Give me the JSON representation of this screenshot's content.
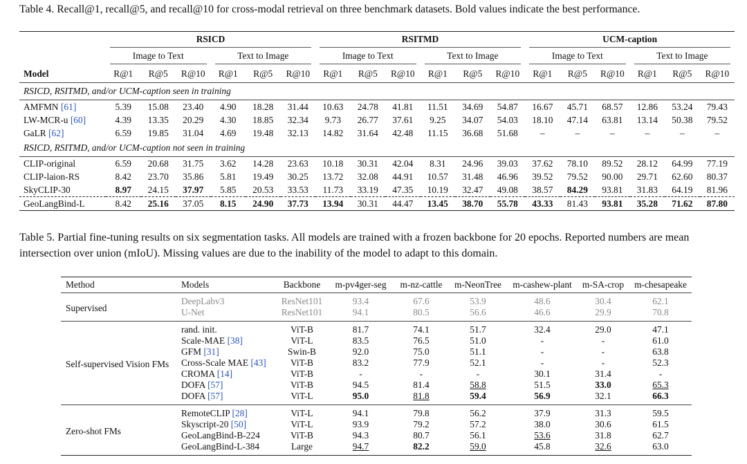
{
  "table4": {
    "caption": "Table 4. Recall@1, recall@5, and recall@10 for cross-modal retrieval on three benchmark datasets. Bold values indicate the best performance.",
    "model_header": "Model",
    "datasets": [
      "RSICD",
      "RSITMD",
      "UCM-caption"
    ],
    "directions": [
      "Image to Text",
      "Text to Image"
    ],
    "metrics": [
      "R@1",
      "R@5",
      "R@10"
    ],
    "sections": [
      {
        "label": "RSICD, RSITMD, and/or UCM-caption seen in training",
        "rows": [
          {
            "model": "AMFMN",
            "ref": "[61]",
            "values": [
              "5.39",
              "15.08",
              "23.40",
              "4.90",
              "18.28",
              "31.44",
              "10.63",
              "24.78",
              "41.81",
              "11.51",
              "34.69",
              "54.87",
              "16.67",
              "45.71",
              "68.57",
              "12.86",
              "53.24",
              "79.43"
            ]
          },
          {
            "model": "LW-MCR-u",
            "ref": "[60]",
            "values": [
              "4.39",
              "13.35",
              "20.29",
              "4.30",
              "18.85",
              "32.34",
              "9.73",
              "26.77",
              "37.61",
              "9.25",
              "34.07",
              "54.03",
              "18.10",
              "47.14",
              "63.81",
              "13.14",
              "50.38",
              "79.52"
            ]
          },
          {
            "model": "GaLR",
            "ref": "[62]",
            "values": [
              "6.59",
              "19.85",
              "31.04",
              "4.69",
              "19.48",
              "32.13",
              "14.82",
              "31.64",
              "42.48",
              "11.15",
              "36.68",
              "51.68",
              "–",
              "–",
              "–",
              "–",
              "–",
              "–"
            ]
          }
        ]
      },
      {
        "label": "RSICD, RSITMD, and/or UCM-caption not seen in training",
        "rows": [
          {
            "model": "CLIP-original",
            "values": [
              "6.59",
              "20.68",
              "31.75",
              "3.62",
              "14.28",
              "23.63",
              "10.18",
              "30.31",
              "42.04",
              "8.31",
              "24.96",
              "39.03",
              "37.62",
              "78.10",
              "89.52",
              "28.12",
              "64.99",
              "77.19"
            ]
          },
          {
            "model": "CLIP-laion-RS",
            "values": [
              "8.42",
              "23.70",
              "35.86",
              "5.81",
              "19.49",
              "30.25",
              "13.72",
              "32.08",
              "44.91",
              "10.57",
              "31.48",
              "46.96",
              "39.52",
              "79.52",
              "90.00",
              "29.71",
              "62.60",
              "80.37"
            ]
          },
          {
            "model": "SkyCLIP-30",
            "values": [
              "8.97",
              "24.15",
              "37.97",
              "5.85",
              "20.53",
              "33.53",
              "11.73",
              "33.19",
              "47.35",
              "10.19",
              "32.47",
              "49.08",
              "38.57",
              "84.29",
              "93.81",
              "31.83",
              "64.19",
              "81.96"
            ],
            "bold": [
              0,
              2,
              13
            ]
          },
          {
            "model": "GeoLangBind-L",
            "dashed_above": true,
            "values": [
              "8.42",
              "25.16",
              "37.05",
              "8.15",
              "24.90",
              "37.73",
              "13.94",
              "30.31",
              "44.47",
              "13.45",
              "38.70",
              "55.78",
              "43.33",
              "81.43",
              "93.81",
              "35.28",
              "71.62",
              "87.80"
            ],
            "bold": [
              1,
              3,
              4,
              5,
              6,
              9,
              10,
              11,
              12,
              14,
              15,
              16,
              17
            ]
          }
        ]
      }
    ]
  },
  "table5": {
    "caption": "Table 5. Partial fine-tuning results on six segmentation tasks. All models are trained with a frozen backbone for 20 epochs. Reported numbers are mean intersection over union (mIoU). Missing values are due to the inability of the model to adapt to this domain.",
    "headers": [
      "Method",
      "Models",
      "Backbone",
      "m-pv4ger-seg",
      "m-nz-cattle",
      "m-NeonTree",
      "m-cashew-plant",
      "m-SA-crop",
      "m-chesapeake"
    ],
    "groups": [
      {
        "method": "Supervised",
        "muted": true,
        "rows": [
          {
            "model": "DeepLabv3",
            "backbone": "ResNet101",
            "values": [
              "93.4",
              "67.6",
              "53.9",
              "48.6",
              "30.4",
              "62.1"
            ]
          },
          {
            "model": "U-Net",
            "backbone": "ResNet101",
            "values": [
              "94.1",
              "80.5",
              "56.6",
              "46.6",
              "29.9",
              "70.8"
            ]
          }
        ]
      },
      {
        "method": "Self-supervised Vision FMs",
        "rows": [
          {
            "model": "rand. init.",
            "backbone": "ViT-B",
            "values": [
              "81.7",
              "74.1",
              "51.7",
              "32.4",
              "29.0",
              "47.1"
            ]
          },
          {
            "model": "Scale-MAE",
            "ref": "[38]",
            "backbone": "ViT-L",
            "values": [
              "83.5",
              "76.5",
              "51.0",
              "-",
              "-",
              "61.0"
            ]
          },
          {
            "model": "GFM",
            "ref": "[31]",
            "backbone": "Swin-B",
            "values": [
              "92.0",
              "75.0",
              "51.1",
              "-",
              "-",
              "63.8"
            ]
          },
          {
            "model": "Cross-Scale MAE",
            "ref": "[43]",
            "backbone": "ViT-B",
            "values": [
              "83.2",
              "77.9",
              "52.1",
              "-",
              "-",
              "52.3"
            ]
          },
          {
            "model": "CROMA",
            "ref": "[14]",
            "backbone": "ViT-B",
            "values": [
              "-",
              "-",
              "-",
              "30.1",
              "31.4",
              "-"
            ]
          },
          {
            "model": "DOFA",
            "ref": "[57]",
            "backbone": "ViT-B",
            "values": [
              "94.5",
              "81.4",
              "58.8",
              "51.5",
              "33.0",
              "65.3"
            ],
            "bold": [
              4
            ],
            "underline": [
              2,
              5
            ]
          },
          {
            "model": "DOFA",
            "ref": "[57]",
            "backbone": "ViT-L",
            "values": [
              "95.0",
              "81.8",
              "59.4",
              "56.9",
              "32.1",
              "66.3"
            ],
            "bold": [
              0,
              2,
              3,
              5
            ],
            "underline": [
              1
            ]
          }
        ]
      },
      {
        "method": "Zero-shot FMs",
        "rows": [
          {
            "model": "RemoteCLIP",
            "ref": "[28]",
            "backbone": "ViT-L",
            "values": [
              "94.1",
              "79.8",
              "56.2",
              "37.9",
              "31.3",
              "59.5"
            ]
          },
          {
            "model": "Skyscript-20",
            "ref": "[50]",
            "backbone": "ViT-L",
            "values": [
              "93.9",
              "79.2",
              "57.2",
              "38.0",
              "30.6",
              "61.5"
            ]
          },
          {
            "model": "GeoLangBind-B-224",
            "backbone": "ViT-B",
            "values": [
              "94.3",
              "80.7",
              "56.1",
              "53.6",
              "31.8",
              "62.7"
            ],
            "underline": [
              3
            ]
          },
          {
            "model": "GeoLangBind-L-384",
            "backbone": "Large",
            "values": [
              "94.7",
              "82.2",
              "59.0",
              "45.8",
              "32.6",
              "63.0"
            ],
            "bold": [
              1
            ],
            "underline": [
              0,
              2,
              4
            ]
          }
        ]
      }
    ]
  }
}
